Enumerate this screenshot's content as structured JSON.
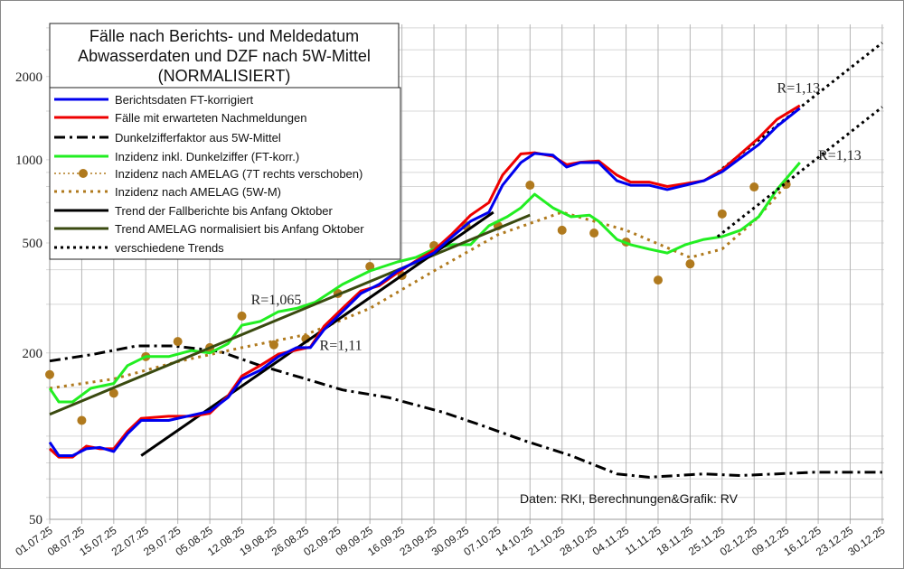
{
  "chart_data": {
    "type": "line",
    "title": [
      "Fälle nach Berichts- und Meldedatum",
      "Abwasserdaten und DZF nach 5W-Mittel",
      "(NORMALISIERT)"
    ],
    "y_scale": "log",
    "ylim": [
      50,
      3100
    ],
    "y_ticks": [
      50,
      200,
      500,
      1000,
      2000
    ],
    "y_tick_labels": [
      "50",
      "200",
      "500",
      "1000",
      "2000"
    ],
    "y_grid": [
      50,
      60,
      70,
      80,
      90,
      100,
      150,
      200,
      300,
      400,
      500,
      600,
      700,
      800,
      900,
      1000,
      1500,
      2000,
      2500,
      3000
    ],
    "x_unit": "days since 01.07.25 shown as dates",
    "x_ticks": [
      "01.07.25",
      "08.07.25",
      "15.07.25",
      "22.07.25",
      "29.07.25",
      "05.08.25",
      "12.08.25",
      "19.08.25",
      "26.08.25",
      "02.09.25",
      "09.09.25",
      "16.09.25",
      "23.09.25",
      "30.09.25",
      "07.10.25",
      "14.10.25",
      "21.10.25",
      "28.10.25",
      "04.11.25",
      "11.11.25",
      "18.11.25",
      "25.11.25",
      "02.12.25",
      "09.12.25",
      "16.12.25",
      "23.12.25",
      "30.12.25"
    ],
    "grid": true,
    "legend_placement": "top-left",
    "series": [
      {
        "name": "Berichtsdaten FT-korrigiert",
        "color": "#0000ee",
        "style": "solid",
        "x": [
          0,
          2,
          5,
          8,
          11,
          14,
          17,
          20,
          26,
          31,
          35,
          39,
          42,
          46,
          50,
          54,
          57,
          60,
          64,
          68,
          72,
          76,
          80,
          84,
          88,
          92,
          96,
          99,
          103,
          106,
          110,
          113,
          116,
          120,
          124,
          127,
          131,
          135,
          139,
          143,
          147,
          151,
          155,
          159,
          164
        ],
        "y": [
          95,
          85,
          85,
          90,
          91,
          88,
          102,
          114,
          114,
          119,
          123,
          138,
          161,
          173,
          194,
          209,
          209,
          243,
          282,
          328,
          354,
          396,
          427,
          460,
          527,
          599,
          646,
          809,
          977,
          1054,
          1040,
          941,
          977,
          977,
          840,
          809,
          809,
          780,
          809,
          840,
          905,
          1014,
          1135,
          1321,
          1535
        ]
      },
      {
        "name": "Fälle mit erwarteten Nachmeldungen",
        "color": "#ee0000",
        "style": "solid",
        "x": [
          0,
          2,
          5,
          8,
          11,
          14,
          17,
          20,
          26,
          31,
          35,
          39,
          42,
          46,
          50,
          54,
          57,
          60,
          64,
          68,
          72,
          76,
          80,
          84,
          88,
          92,
          96,
          99,
          103,
          106,
          110,
          113,
          116,
          120,
          124,
          127,
          131,
          135,
          139,
          143,
          147,
          151,
          155,
          159,
          164
        ],
        "y": [
          90,
          84,
          84,
          92,
          90,
          90,
          104,
          116,
          118,
          118,
          121,
          140,
          165,
          180,
          198,
          205,
          210,
          250,
          290,
          335,
          350,
          390,
          430,
          470,
          540,
          630,
          700,
          880,
          1050,
          1060,
          1030,
          960,
          980,
          990,
          880,
          830,
          830,
          800,
          820,
          840,
          920,
          1050,
          1200,
          1400,
          1570
        ]
      },
      {
        "name": "Dunkelzifferfaktor aus 5W-Mittel",
        "color": "#000000",
        "style": "dashdot",
        "x": [
          0,
          9,
          19,
          27,
          37,
          46,
          56,
          64,
          74,
          86,
          94,
          104,
          114,
          124,
          131,
          143,
          151,
          159,
          167,
          182
        ],
        "y": [
          187,
          197,
          212,
          212,
          203,
          180,
          161,
          147,
          138,
          122,
          110,
          96,
          85,
          73,
          71,
          73,
          72,
          73,
          74,
          74
        ]
      },
      {
        "name": "Inzidenz inkl. Dunkelziffer (FT-korr.)",
        "color": "#22ee22",
        "style": "solid",
        "x": [
          0,
          2,
          5,
          9,
          14,
          17,
          21,
          26,
          31,
          35,
          39,
          42,
          46,
          50,
          54,
          58,
          64,
          70,
          76,
          80,
          84,
          88,
          92,
          96,
          100,
          103,
          106,
          110,
          114,
          118,
          120,
          124,
          127,
          131,
          135,
          139,
          143,
          147,
          151,
          155,
          159,
          164
        ],
        "y": [
          149,
          133,
          133,
          149,
          155,
          180,
          194,
          194,
          204,
          200,
          216,
          252,
          260,
          282,
          290,
          305,
          354,
          396,
          427,
          443,
          475,
          493,
          493,
          577,
          622,
          670,
          750,
          670,
          622,
          630,
          599,
          515,
          493,
          475,
          460,
          493,
          515,
          527,
          556,
          622,
          780,
          977
        ]
      },
      {
        "name": "Inzidenz nach AMELAG (7T rechts verschoben)",
        "color": "#b07a1e",
        "style": "dotted-markers",
        "x": [
          0,
          7,
          14,
          21,
          28,
          35,
          42,
          49,
          56,
          63,
          70,
          77,
          84,
          91,
          98,
          105,
          112,
          119,
          126,
          133,
          140,
          147,
          154,
          161
        ],
        "y": [
          167,
          114,
          143,
          194,
          220,
          209,
          272,
          214,
          225,
          328,
          411,
          381,
          489,
          577,
          577,
          809,
          556,
          543,
          504,
          367,
          420,
          637,
          797,
          815
        ]
      },
      {
        "name": "Inzidenz nach AMELAG (5W-M)",
        "color": "#b07a1e",
        "style": "dotted",
        "x": [
          0,
          14,
          28,
          42,
          56,
          70,
          84,
          98,
          112,
          126,
          140,
          147,
          154,
          161
        ],
        "y": [
          149,
          161,
          186,
          209,
          233,
          290,
          396,
          536,
          646,
          556,
          443,
          475,
          599,
          809
        ]
      },
      {
        "name": "Trend der Fallberichte bis Anfang Oktober",
        "color": "#000000",
        "style": "solid-thick",
        "x": [
          20,
          97
        ],
        "y": [
          85,
          646
        ]
      },
      {
        "name": "Trend AMELAG normalisiert bis Anfang Oktober",
        "color": "#3a4a10",
        "style": "solid-thick",
        "x": [
          0,
          105
        ],
        "y": [
          120,
          631
        ]
      },
      {
        "name": "verschiedene Trends",
        "color": "#000000",
        "style": "dotted-thick",
        "segments": [
          {
            "x": [
              146,
              182
            ],
            "y": [
              900,
              2650
            ]
          },
          {
            "x": [
              146,
              182
            ],
            "y": [
              527,
              1550
            ]
          }
        ]
      }
    ],
    "annotations": [
      {
        "text": "R=1,065",
        "x": 44,
        "y": 300
      },
      {
        "text": "R=1,11",
        "x": 59,
        "y": 205
      },
      {
        "text": "R=1,13",
        "x": 159,
        "y": 1750
      },
      {
        "text": "R=1,13",
        "x": 168,
        "y": 1000
      }
    ],
    "source": "Daten: RKI, Berechnungen&Grafik: RV"
  }
}
